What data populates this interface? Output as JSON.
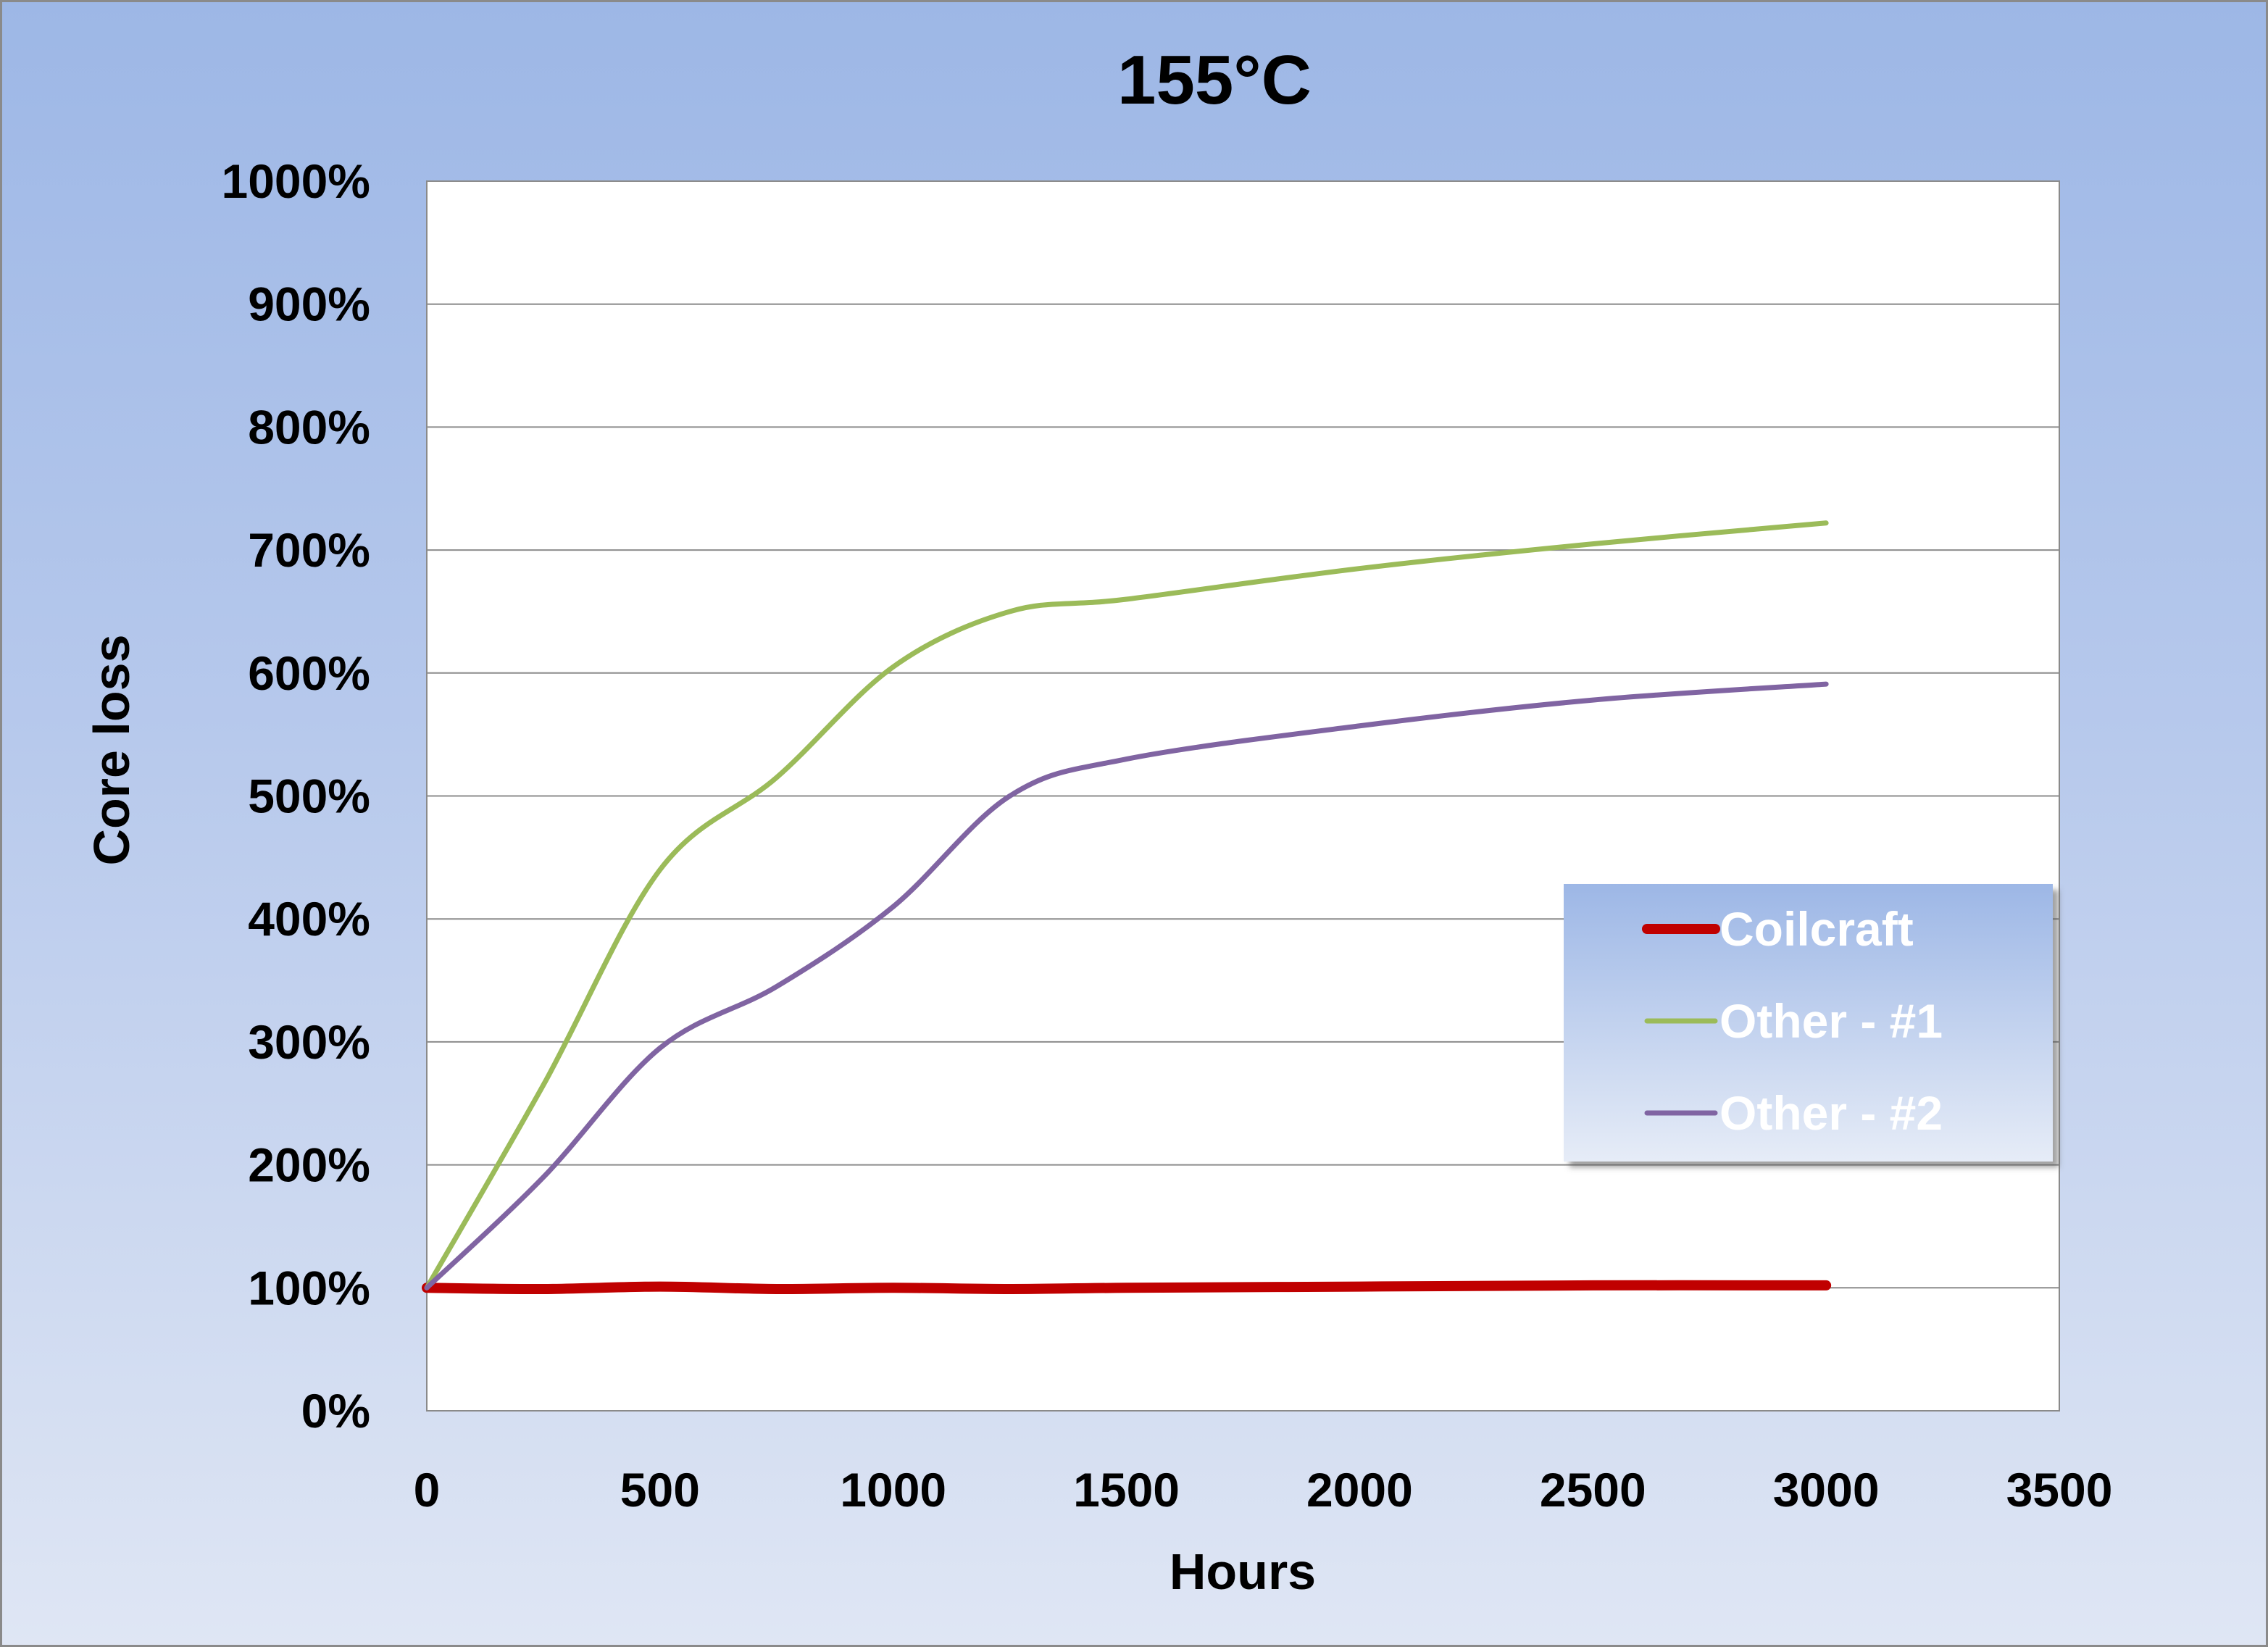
{
  "chart_data": {
    "type": "line",
    "title": "155°C",
    "xlabel": "Hours",
    "ylabel": "Core loss",
    "xlim": [
      0,
      3500
    ],
    "ylim": [
      0,
      1000
    ],
    "x_ticks": [
      "0",
      "500",
      "1000",
      "1500",
      "2000",
      "2500",
      "3000",
      "3500"
    ],
    "y_ticks": [
      "0%",
      "100%",
      "200%",
      "300%",
      "400%",
      "500%",
      "600%",
      "700%",
      "800%",
      "900%",
      "1000%"
    ],
    "grid": true,
    "legend_position": "right",
    "series": [
      {
        "name": "Coilcraft",
        "color": "#c00000",
        "points": [
          [
            0,
            100
          ],
          [
            250,
            99
          ],
          [
            500,
            101
          ],
          [
            750,
            99
          ],
          [
            1000,
            100
          ],
          [
            1250,
            99
          ],
          [
            1500,
            100
          ],
          [
            2000,
            101
          ],
          [
            2500,
            102
          ],
          [
            3000,
            102
          ]
        ]
      },
      {
        "name": "Other - #1",
        "color": "#9bbb59",
        "points": [
          [
            0,
            100
          ],
          [
            250,
            265
          ],
          [
            500,
            440
          ],
          [
            750,
            515
          ],
          [
            1000,
            605
          ],
          [
            1250,
            650
          ],
          [
            1500,
            660
          ],
          [
            2000,
            685
          ],
          [
            2500,
            705
          ],
          [
            3000,
            722
          ]
        ]
      },
      {
        "name": "Other - #2",
        "color": "#8064a2",
        "points": [
          [
            0,
            100
          ],
          [
            250,
            190
          ],
          [
            500,
            295
          ],
          [
            750,
            345
          ],
          [
            1000,
            410
          ],
          [
            1250,
            500
          ],
          [
            1500,
            530
          ],
          [
            2000,
            557
          ],
          [
            2500,
            578
          ],
          [
            3000,
            591
          ]
        ]
      }
    ]
  }
}
